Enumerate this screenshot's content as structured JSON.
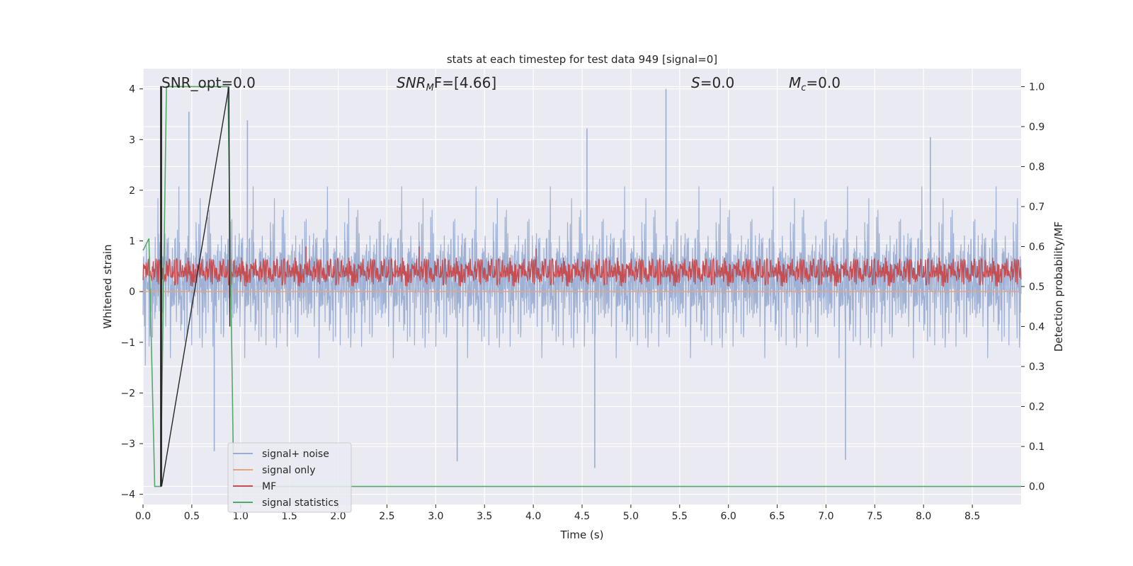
{
  "chart_data": {
    "type": "line",
    "title": "stats at each timestep for test data 949 [signal=0]",
    "xlabel": "Time (s)",
    "ylabel": "Whitened strain",
    "ylabel_right": "Detection probability/MF",
    "xlim": [
      0.0,
      9.0
    ],
    "ylim": [
      -4.2,
      4.4
    ],
    "ylim_right": [
      -0.045,
      1.045
    ],
    "x_ticks": [
      "0.0",
      "0.5",
      "1.0",
      "1.5",
      "2.0",
      "2.5",
      "3.0",
      "3.5",
      "4.0",
      "4.5",
      "5.0",
      "5.5",
      "6.0",
      "6.5",
      "7.0",
      "7.5",
      "8.0",
      "8.5"
    ],
    "y_ticks": [
      "4",
      "3",
      "2",
      "1",
      "0",
      "−1",
      "−2",
      "−3",
      "−4"
    ],
    "y_right_ticks": [
      "1.0",
      "0.9",
      "0.8",
      "0.7",
      "0.6",
      "0.5",
      "0.4",
      "0.3",
      "0.2",
      "0.1",
      "0.0"
    ],
    "grid": true,
    "legend_position": "lower-left",
    "annotations": {
      "snr_opt": "SNR_opt=0.0",
      "snr_mf_prefix": "SNR",
      "snr_mf_sub": "M",
      "snr_mf_suffix": "F=[4.66]",
      "s_var": "S",
      "s_value": "=0.0",
      "mc_var": "M",
      "mc_sub": "c",
      "mc_value": "=0.0"
    },
    "series": [
      {
        "name": "signal+ noise",
        "color": "#9aaed2",
        "sample_interval": 0.00048828125,
        "envelope": {
          "description_values": "approximate band of whitened strain noise",
          "typical_range": [
            -2.0,
            2.0
          ],
          "extreme_range": [
            -3.5,
            4.0
          ]
        },
        "peaks": [
          {
            "x": 0.47,
            "y": 3.55
          },
          {
            "x": 1.07,
            "y": 3.38
          },
          {
            "x": 4.55,
            "y": 3.22
          },
          {
            "x": 5.36,
            "y": 4.0
          },
          {
            "x": 8.07,
            "y": 3.05
          },
          {
            "x": 0.73,
            "y": -3.15
          },
          {
            "x": 3.22,
            "y": -3.35
          },
          {
            "x": 4.63,
            "y": -3.48
          },
          {
            "x": 7.2,
            "y": -3.32
          }
        ]
      },
      {
        "name": "signal only",
        "color": "#e8a27f",
        "values_constant": 0.0
      },
      {
        "name": "MF",
        "color": "#c44e52",
        "axis": "right",
        "typical_range": [
          0.5,
          0.57
        ],
        "peaks": [
          {
            "x": 1.67,
            "y": 0.6
          },
          {
            "x": 2.83,
            "y": 0.6
          },
          {
            "x": 4.03,
            "y": 0.595
          }
        ]
      },
      {
        "name": "signal statistics",
        "color": "#55a868",
        "axis": "right",
        "x": [
          0.0,
          0.06,
          0.12,
          0.18,
          0.24,
          0.3,
          0.42,
          0.54,
          0.66,
          0.78,
          0.87,
          0.93,
          1.0,
          1.5,
          2.0,
          3.0,
          4.0,
          5.0,
          6.0,
          7.0,
          8.0,
          9.0
        ],
        "y": [
          0.59,
          0.62,
          0.0,
          0.0,
          1.0,
          1.0,
          1.0,
          1.0,
          1.0,
          1.0,
          1.0,
          0.0,
          0.0,
          0.0,
          0.0,
          0.0,
          0.0,
          0.0,
          0.0,
          0.0,
          0.0,
          0.0
        ]
      },
      {
        "name": "",
        "color": "#262626",
        "axis": "right",
        "x": [
          0.18,
          0.18,
          0.19,
          0.19,
          0.88,
          0.88,
          0.89
        ],
        "y": [
          0.0,
          1.0,
          1.0,
          0.0,
          1.0,
          1.0,
          0.4
        ]
      }
    ]
  }
}
